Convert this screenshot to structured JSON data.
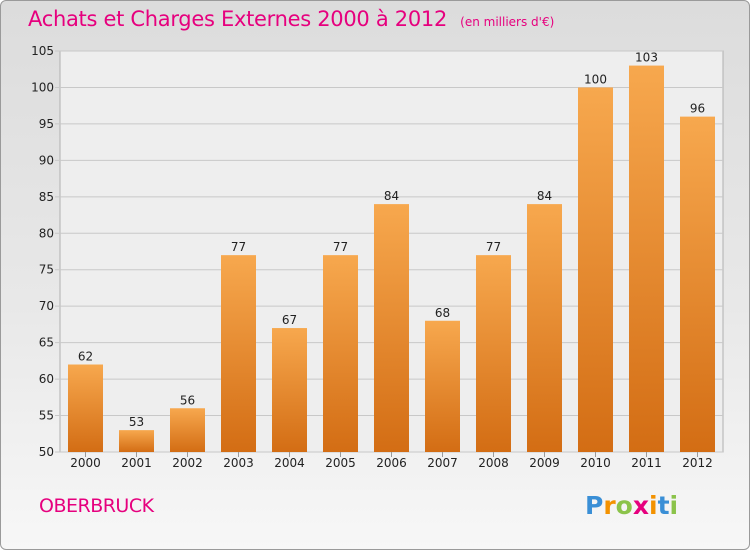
{
  "title": "Achats et Charges Externes 2000 à 2012",
  "subtitle": "(en milliers d'€)",
  "commune": "OBERBRUCK",
  "logo": {
    "letters": [
      "P",
      "r",
      "o",
      "x",
      "i",
      "t",
      "i"
    ],
    "colors": [
      "#3a8fd6",
      "#f39200",
      "#8bc34a",
      "#e6007e",
      "#f39200",
      "#3a8fd6",
      "#8bc34a"
    ]
  },
  "colors": {
    "accent": "#e6007e",
    "bar_top": "#f7a84e",
    "bar_bottom": "#d36d14",
    "grid": "#c8c8c8"
  },
  "chart_data": {
    "type": "bar",
    "categories": [
      "2000",
      "2001",
      "2002",
      "2003",
      "2004",
      "2005",
      "2006",
      "2007",
      "2008",
      "2009",
      "2010",
      "2011",
      "2012"
    ],
    "values": [
      62,
      53,
      56,
      77,
      67,
      77,
      84,
      68,
      77,
      84,
      100,
      103,
      96
    ],
    "ylim": [
      50,
      105
    ],
    "yticks": [
      50,
      55,
      60,
      65,
      70,
      75,
      80,
      85,
      90,
      95,
      100,
      105
    ],
    "grid": true,
    "xlabel": "",
    "ylabel": ""
  }
}
